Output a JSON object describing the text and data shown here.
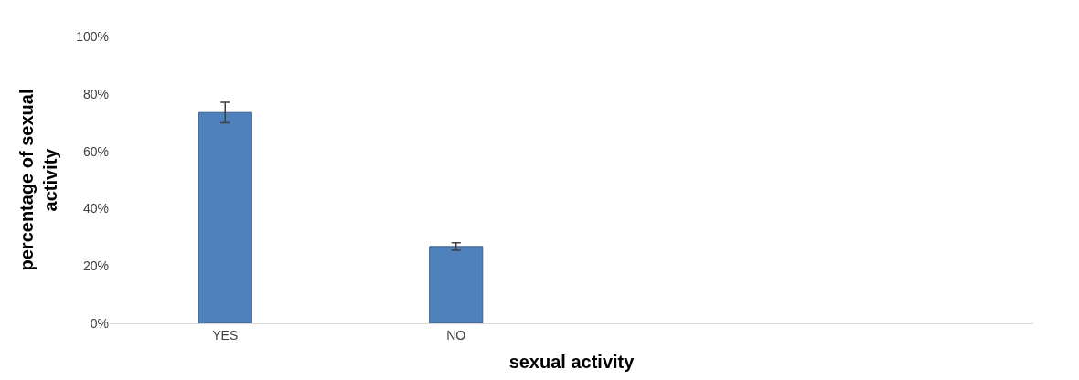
{
  "chart_data": {
    "type": "bar",
    "xlabel": "sexual activity",
    "ylabel": "percentage of sexual activity",
    "categories": [
      "YES",
      "NO",
      null,
      null
    ],
    "values": [
      73.5,
      26.8,
      null,
      null
    ],
    "errors": [
      3.6,
      1.3,
      null,
      null
    ],
    "color": "#4f81bd",
    "ylim": [
      0,
      100
    ],
    "yticks": [
      {
        "value": 0,
        "label": "0%"
      },
      {
        "value": 20,
        "label": "20%"
      },
      {
        "value": 40,
        "label": "40%"
      },
      {
        "value": 60,
        "label": "60%"
      },
      {
        "value": 80,
        "label": "80%"
      },
      {
        "value": 100,
        "label": "100%"
      }
    ]
  }
}
